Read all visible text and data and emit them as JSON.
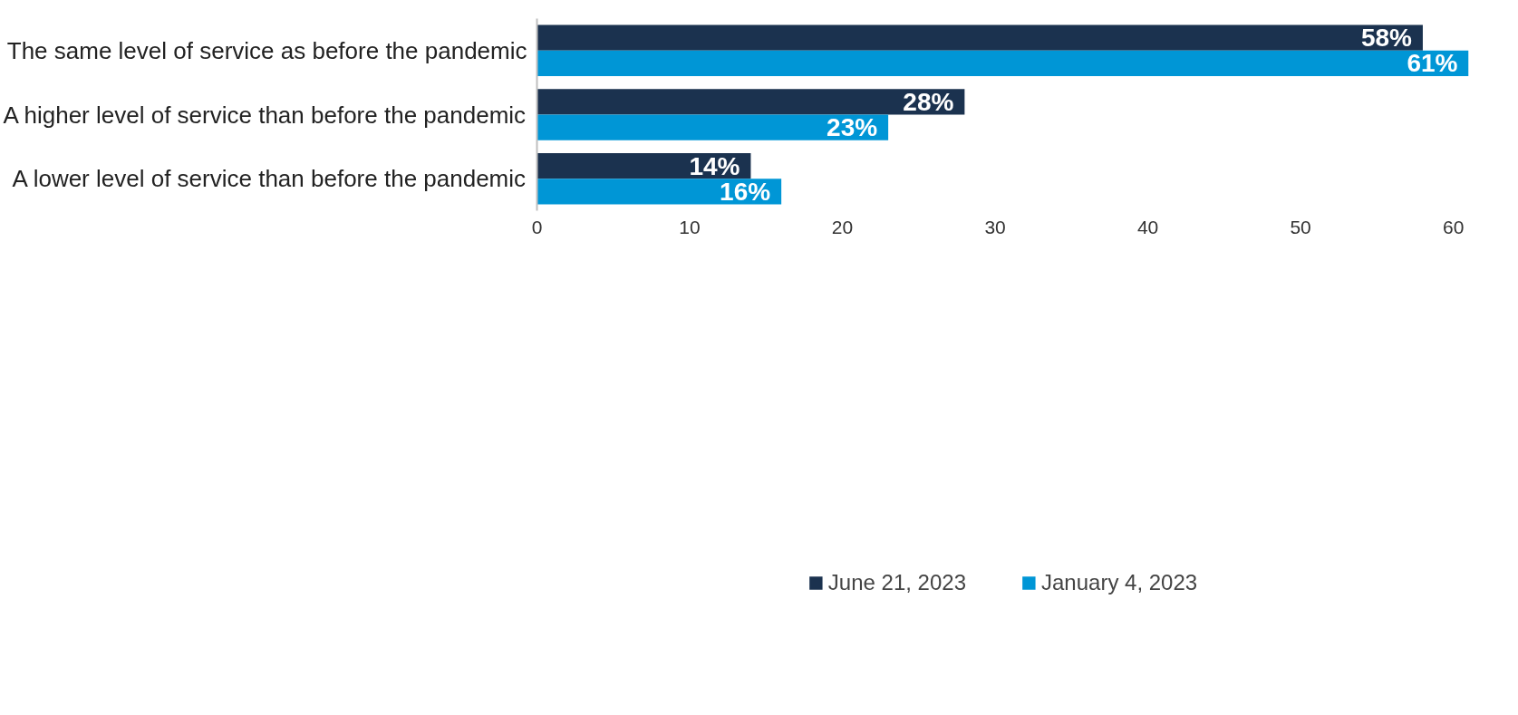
{
  "chart_data": {
    "type": "bar",
    "orientation": "horizontal",
    "categories": [
      "The same level of service as before the pandemic",
      "A higher level of service than before the pandemic",
      "A lower level of service than before the pandemic"
    ],
    "series": [
      {
        "name": "June 21, 2023",
        "color": "#1b324f",
        "values": [
          58,
          28,
          14
        ],
        "value_labels": [
          "58%",
          "28%",
          "14%"
        ]
      },
      {
        "name": "January 4, 2023",
        "color": "#0096d6",
        "values": [
          61,
          23,
          16
        ],
        "value_labels": [
          "61%",
          "23%",
          "16%"
        ]
      }
    ],
    "xlim": [
      0,
      61
    ],
    "xticks": [
      0,
      10,
      20,
      30,
      40,
      50,
      60
    ],
    "grid": false,
    "legend": "bottom"
  }
}
